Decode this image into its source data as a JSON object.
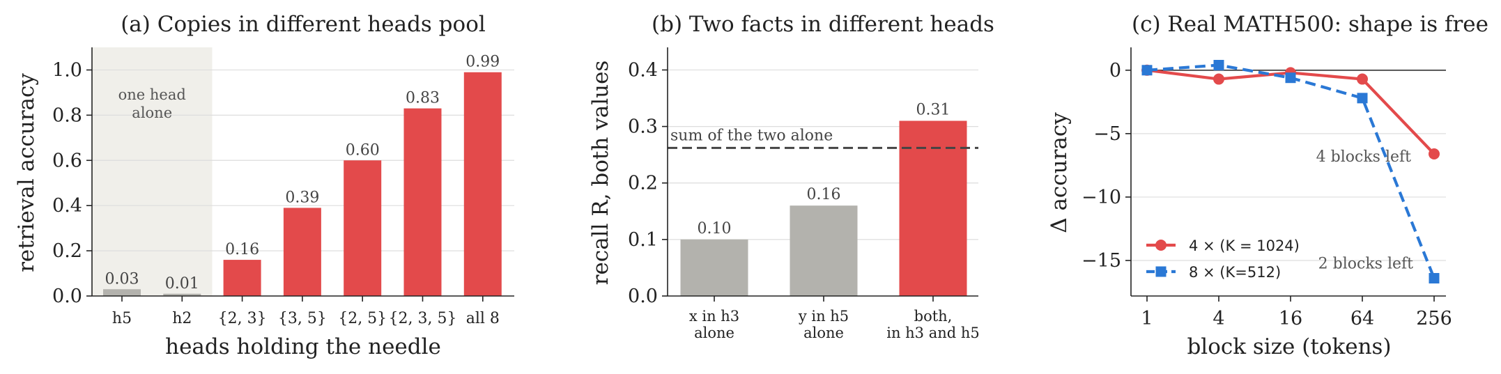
{
  "colors": {
    "accent": "#e34a4b",
    "neutral": "#b3b2ad",
    "shade": "#f0efea",
    "blue": "#2a78d5",
    "text": "#222222",
    "muted": "#555555",
    "grid": "#dddddd"
  },
  "chart_data": [
    {
      "id": "a",
      "type": "bar",
      "title": "(a) Copies in different heads pool",
      "xlabel": "heads holding the needle",
      "ylabel": "retrieval accuracy",
      "categories": [
        "h5",
        "h2",
        "{2, 3}",
        "{3, 5}",
        "{2, 5}",
        "{2, 3, 5}",
        "all 8"
      ],
      "values": [
        0.03,
        0.01,
        0.16,
        0.39,
        0.6,
        0.83,
        0.99
      ],
      "value_labels": [
        "0.03",
        "0.01",
        "0.16",
        "0.39",
        "0.60",
        "0.83",
        "0.99"
      ],
      "bar_colors": [
        "neutral",
        "neutral",
        "accent",
        "accent",
        "accent",
        "accent",
        "accent"
      ],
      "ylim": [
        0,
        1.1
      ],
      "yticks": [
        0,
        0.2,
        0.4,
        0.6,
        0.8,
        1.0
      ],
      "ytick_labels": [
        "0.0",
        "0.2",
        "0.4",
        "0.6",
        "0.8",
        "1.0"
      ],
      "shaded_region": {
        "first_category": 0,
        "last_category": 1,
        "label_lines": [
          "one head",
          "alone"
        ]
      },
      "grid": "horizontal"
    },
    {
      "id": "b",
      "type": "bar",
      "title": "(b) Two facts in different heads",
      "xlabel": "",
      "ylabel": "recall R, both values",
      "categories": [
        [
          "x in h3",
          "alone"
        ],
        [
          "y in h5",
          "alone"
        ],
        [
          "both,",
          "in h3 and h5"
        ]
      ],
      "values": [
        0.1,
        0.16,
        0.31
      ],
      "value_labels": [
        "0.10",
        "0.16",
        "0.31"
      ],
      "bar_colors": [
        "neutral",
        "neutral",
        "accent"
      ],
      "ylim": [
        0,
        0.44
      ],
      "yticks": [
        0,
        0.1,
        0.2,
        0.3,
        0.4
      ],
      "ytick_labels": [
        "0.0",
        "0.1",
        "0.2",
        "0.3",
        "0.4"
      ],
      "reference_line": {
        "value": 0.262,
        "label": "sum of the two alone"
      },
      "grid": "horizontal"
    },
    {
      "id": "c",
      "type": "line",
      "title": "(c) Real MATH500: shape is free",
      "xlabel": "block size (tokens)",
      "ylabel": "Δ accuracy",
      "x": [
        1,
        4,
        16,
        64,
        256
      ],
      "xtick_labels": [
        "1",
        "4",
        "16",
        "64",
        "256"
      ],
      "x_scale": "log",
      "ylim": [
        -17.8,
        1.8
      ],
      "yticks": [
        0,
        -5,
        -10,
        -15
      ],
      "ytick_labels": [
        "0",
        "−5",
        "−10",
        "−15"
      ],
      "series": [
        {
          "name": "4 ×  (K = 1024)",
          "values": [
            0.0,
            -0.7,
            -0.2,
            -0.7,
            -6.6
          ],
          "color": "accent",
          "marker": "circle",
          "dash": "solid",
          "end_label": "4 blocks left"
        },
        {
          "name": "8 ×  (K=512)",
          "values": [
            0.0,
            0.4,
            -0.6,
            -2.2,
            -16.4
          ],
          "color": "blue",
          "marker": "square",
          "dash": "dashed",
          "end_label": "2 blocks left"
        }
      ],
      "legend": "lower-left",
      "grid": "horizontal"
    }
  ]
}
